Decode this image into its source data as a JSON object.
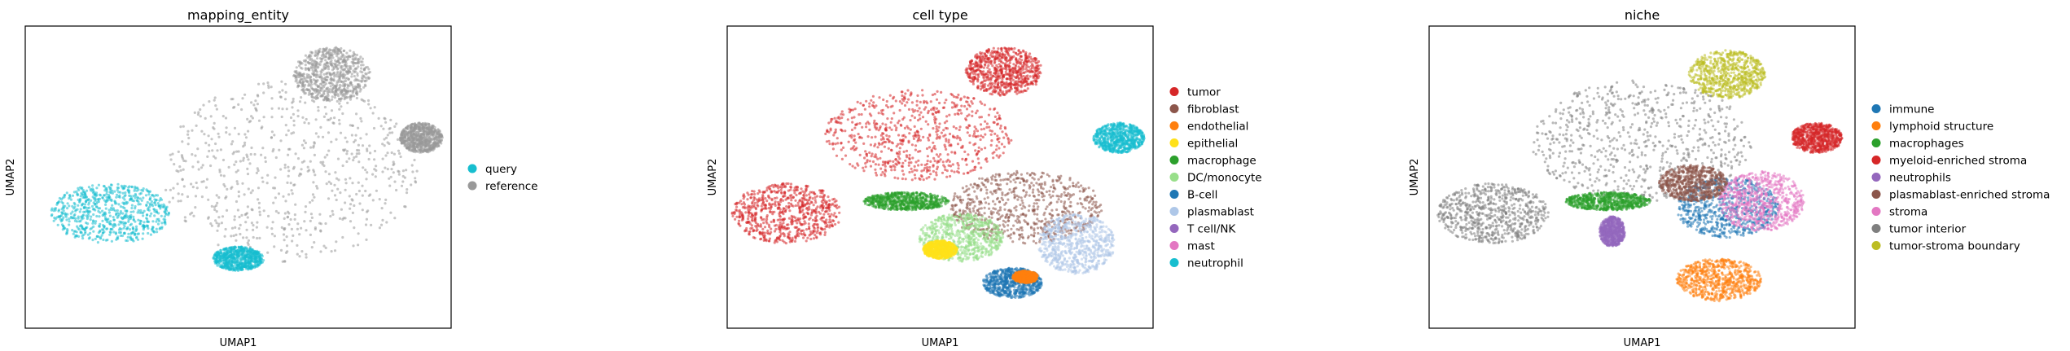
{
  "chart_data": [
    {
      "type": "scatter",
      "title": "mapping_entity",
      "xlabel": "UMAP1",
      "ylabel": "UMAP2",
      "grid": false,
      "ticks": false,
      "legend_placement": "right-outside",
      "series": [
        {
          "name": "query",
          "color": "#17becf"
        },
        {
          "name": "reference",
          "color": "#999999"
        }
      ],
      "regions": [
        {
          "series": "reference",
          "x": 0.62,
          "y": 0.52,
          "rx": 0.3,
          "ry": 0.3
        },
        {
          "series": "reference",
          "x": 0.72,
          "y": 0.84,
          "rx": 0.09,
          "ry": 0.09
        },
        {
          "series": "reference",
          "x": 0.93,
          "y": 0.63,
          "rx": 0.05,
          "ry": 0.05
        },
        {
          "series": "query",
          "x": 0.2,
          "y": 0.38,
          "rx": 0.14,
          "ry": 0.1
        },
        {
          "series": "query",
          "x": 0.5,
          "y": 0.23,
          "rx": 0.06,
          "ry": 0.04
        }
      ]
    },
    {
      "type": "scatter",
      "title": "cell type",
      "xlabel": "UMAP1",
      "ylabel": "UMAP2",
      "grid": false,
      "ticks": false,
      "legend_placement": "right-outside",
      "series": [
        {
          "name": "tumor",
          "color": "#d62728"
        },
        {
          "name": "fibroblast",
          "color": "#8c564b"
        },
        {
          "name": "endothelial",
          "color": "#ff7f0e"
        },
        {
          "name": "epithelial",
          "color": "#ffe119"
        },
        {
          "name": "macrophage",
          "color": "#2ca02c"
        },
        {
          "name": "DC/monocyte",
          "color": "#98df8a"
        },
        {
          "name": "B-cell",
          "color": "#1f77b4"
        },
        {
          "name": "plasmablast",
          "color": "#aec7e8"
        },
        {
          "name": "T cell/NK",
          "color": "#9467bd"
        },
        {
          "name": "mast",
          "color": "#e377c2"
        },
        {
          "name": "neutrophil",
          "color": "#17becf"
        }
      ],
      "regions": [
        {
          "series": "tumor",
          "x": 0.45,
          "y": 0.64,
          "rx": 0.22,
          "ry": 0.15
        },
        {
          "series": "tumor",
          "x": 0.65,
          "y": 0.85,
          "rx": 0.09,
          "ry": 0.08
        },
        {
          "series": "tumor",
          "x": 0.14,
          "y": 0.38,
          "rx": 0.13,
          "ry": 0.1
        },
        {
          "series": "neutrophil",
          "x": 0.92,
          "y": 0.63,
          "rx": 0.06,
          "ry": 0.05
        },
        {
          "series": "fibroblast",
          "x": 0.7,
          "y": 0.4,
          "rx": 0.18,
          "ry": 0.12
        },
        {
          "series": "plasmablast",
          "x": 0.82,
          "y": 0.28,
          "rx": 0.09,
          "ry": 0.1
        },
        {
          "series": "DC/monocyte",
          "x": 0.55,
          "y": 0.3,
          "rx": 0.1,
          "ry": 0.08
        },
        {
          "series": "macrophage",
          "x": 0.42,
          "y": 0.42,
          "rx": 0.1,
          "ry": 0.03
        },
        {
          "series": "B-cell",
          "x": 0.67,
          "y": 0.15,
          "rx": 0.07,
          "ry": 0.05
        },
        {
          "series": "epithelial",
          "x": 0.5,
          "y": 0.26,
          "rx": 0.04,
          "ry": 0.03
        },
        {
          "series": "endothelial",
          "x": 0.7,
          "y": 0.17,
          "rx": 0.03,
          "ry": 0.02
        }
      ]
    },
    {
      "type": "scatter",
      "title": "niche",
      "xlabel": "UMAP1",
      "ylabel": "UMAP2",
      "grid": false,
      "ticks": false,
      "legend_placement": "right-outside",
      "series": [
        {
          "name": "immune",
          "color": "#1f77b4"
        },
        {
          "name": "lymphoid structure",
          "color": "#ff7f0e"
        },
        {
          "name": "macrophages",
          "color": "#2ca02c"
        },
        {
          "name": "myeloid-enriched stroma",
          "color": "#d62728"
        },
        {
          "name": "neutrophils",
          "color": "#9467bd"
        },
        {
          "name": "plasmablast-enriched stroma",
          "color": "#8c564b"
        },
        {
          "name": "stroma",
          "color": "#e377c2"
        },
        {
          "name": "tumor interior",
          "color": "#7f7f7f"
        },
        {
          "name": "tumor-stroma boundary",
          "color": "#bcbd22"
        }
      ],
      "regions": [
        {
          "series": "tumor interior",
          "x": 0.5,
          "y": 0.62,
          "rx": 0.26,
          "ry": 0.2
        },
        {
          "series": "tumor interior",
          "x": 0.15,
          "y": 0.38,
          "rx": 0.13,
          "ry": 0.1
        },
        {
          "series": "tumor-stroma boundary",
          "x": 0.7,
          "y": 0.84,
          "rx": 0.09,
          "ry": 0.08
        },
        {
          "series": "myeloid-enriched stroma",
          "x": 0.91,
          "y": 0.63,
          "rx": 0.06,
          "ry": 0.05
        },
        {
          "series": "immune",
          "x": 0.7,
          "y": 0.4,
          "rx": 0.12,
          "ry": 0.1
        },
        {
          "series": "stroma",
          "x": 0.78,
          "y": 0.42,
          "rx": 0.1,
          "ry": 0.1
        },
        {
          "series": "lymphoid structure",
          "x": 0.68,
          "y": 0.16,
          "rx": 0.1,
          "ry": 0.07
        },
        {
          "series": "neutrophils",
          "x": 0.43,
          "y": 0.32,
          "rx": 0.03,
          "ry": 0.05
        },
        {
          "series": "macrophages",
          "x": 0.42,
          "y": 0.42,
          "rx": 0.1,
          "ry": 0.03
        },
        {
          "series": "plasmablast-enriched stroma",
          "x": 0.62,
          "y": 0.48,
          "rx": 0.08,
          "ry": 0.06
        }
      ]
    }
  ]
}
